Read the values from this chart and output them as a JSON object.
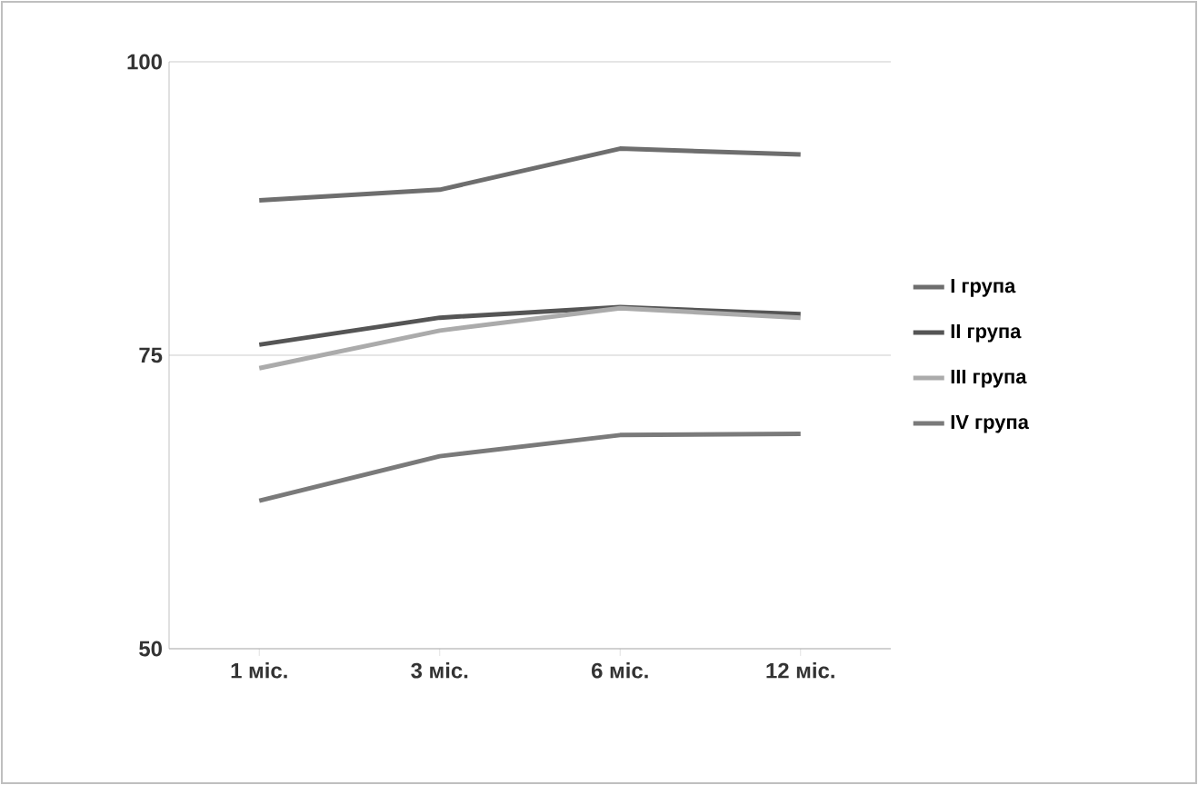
{
  "chart_data": {
    "type": "line",
    "categories": [
      "1 міс.",
      "3 міс.",
      "6 міс.",
      "12 міс."
    ],
    "series": [
      {
        "name": "I група",
        "color": "#6e6e6e",
        "values": [
          88.2,
          89.1,
          92.6,
          92.1
        ]
      },
      {
        "name": "II група",
        "color": "#555555",
        "values": [
          75.9,
          78.2,
          79.1,
          78.5
        ]
      },
      {
        "name": "III група",
        "color": "#ababab",
        "values": [
          73.9,
          77.1,
          79.0,
          78.2
        ]
      },
      {
        "name": "IV група",
        "color": "#7a7a7a",
        "values": [
          62.6,
          66.4,
          68.2,
          68.3
        ]
      }
    ],
    "ylim": [
      50,
      100
    ],
    "yticks": [
      50,
      75,
      100
    ],
    "grid": "y",
    "legend": "right",
    "marker": "none",
    "line_style": "solid"
  }
}
